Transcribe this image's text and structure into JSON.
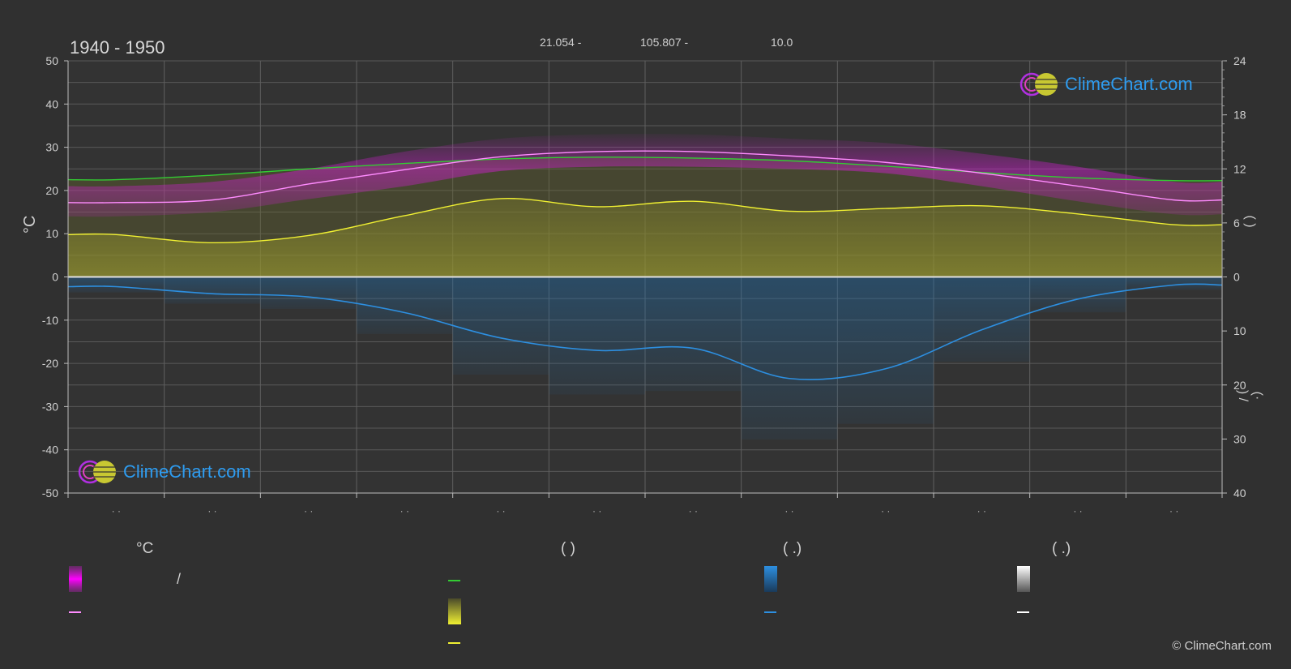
{
  "header": {
    "period": "1940 - 1950",
    "latitude": "21.054 -",
    "longitude": "105.807 -",
    "elevation": "10.0"
  },
  "axes": {
    "left_unit": "°C",
    "right_label_top": "(    )",
    "right_label_bottom": "(·    )   /"
  },
  "legend": {
    "col1_heading": "°C",
    "col2_heading": "(          )",
    "col3_heading": "(   .)",
    "col4_heading": "(   .)",
    "col1_range_sep": "/"
  },
  "logo": {
    "text": "ClimeChart.com"
  },
  "copyright": "© ClimeChart.com",
  "colors": {
    "background": "#303030",
    "temp_band": "#d21ed2",
    "temp_mean_line": "#ff8cff",
    "daylight_line": "#33cc33",
    "sunshine_band": "#c8c832",
    "sunshine_line": "#f0f032",
    "precip_band": "#1f6fae",
    "precip_line": "#2d8fe0",
    "snow_band": "#bbbbbb",
    "snow_line": "#ffffff",
    "logo_blue": "#2e9cf0"
  },
  "chart_data": {
    "type": "area",
    "title": "1940 - 1950",
    "x": [
      "Jan",
      "Feb",
      "Mar",
      "Apr",
      "May",
      "Jun",
      "Jul",
      "Aug",
      "Sep",
      "Oct",
      "Nov",
      "Dec"
    ],
    "ylim_left": [
      -50,
      50
    ],
    "yticks_left": [
      50,
      40,
      30,
      20,
      10,
      0,
      -10,
      -20,
      -30,
      -40,
      -50
    ],
    "ylim_right_top": [
      0,
      24
    ],
    "yticks_right_top": [
      24,
      18,
      12,
      6,
      0
    ],
    "ylim_right_bottom": [
      0,
      40
    ],
    "yticks_right_bottom": [
      0,
      10,
      20,
      30,
      40
    ],
    "grid": true,
    "series": [
      {
        "name": "temperature-mean",
        "axis": "left",
        "values": [
          17.2,
          17.8,
          21.5,
          24.8,
          27.8,
          29.0,
          29.0,
          28.0,
          26.5,
          24.0,
          21.0,
          17.8
        ]
      },
      {
        "name": "temperature-max-band",
        "axis": "left",
        "values": [
          21.0,
          22.0,
          25.0,
          29.0,
          32.0,
          33.0,
          33.0,
          32.0,
          31.0,
          28.5,
          25.5,
          22.0
        ]
      },
      {
        "name": "temperature-min-band",
        "axis": "left",
        "values": [
          14.0,
          15.0,
          18.0,
          21.0,
          24.5,
          25.5,
          25.5,
          25.0,
          24.0,
          21.0,
          17.5,
          14.5
        ]
      },
      {
        "name": "daylight-hours",
        "axis": "right_top",
        "values": [
          10.8,
          11.3,
          12.0,
          12.6,
          13.1,
          13.3,
          13.2,
          12.9,
          12.3,
          11.6,
          11.0,
          10.7
        ]
      },
      {
        "name": "sunshine-hours",
        "axis": "right_top",
        "values": [
          4.7,
          3.8,
          4.6,
          6.8,
          8.7,
          7.8,
          8.4,
          7.3,
          7.6,
          7.9,
          7.0,
          5.8
        ]
      },
      {
        "name": "precipitation-mm",
        "axis": "right_bottom",
        "values": [
          1.8,
          3.1,
          3.7,
          6.6,
          11.3,
          13.6,
          13.2,
          18.8,
          17.0,
          9.8,
          4.1,
          1.5
        ]
      }
    ]
  }
}
